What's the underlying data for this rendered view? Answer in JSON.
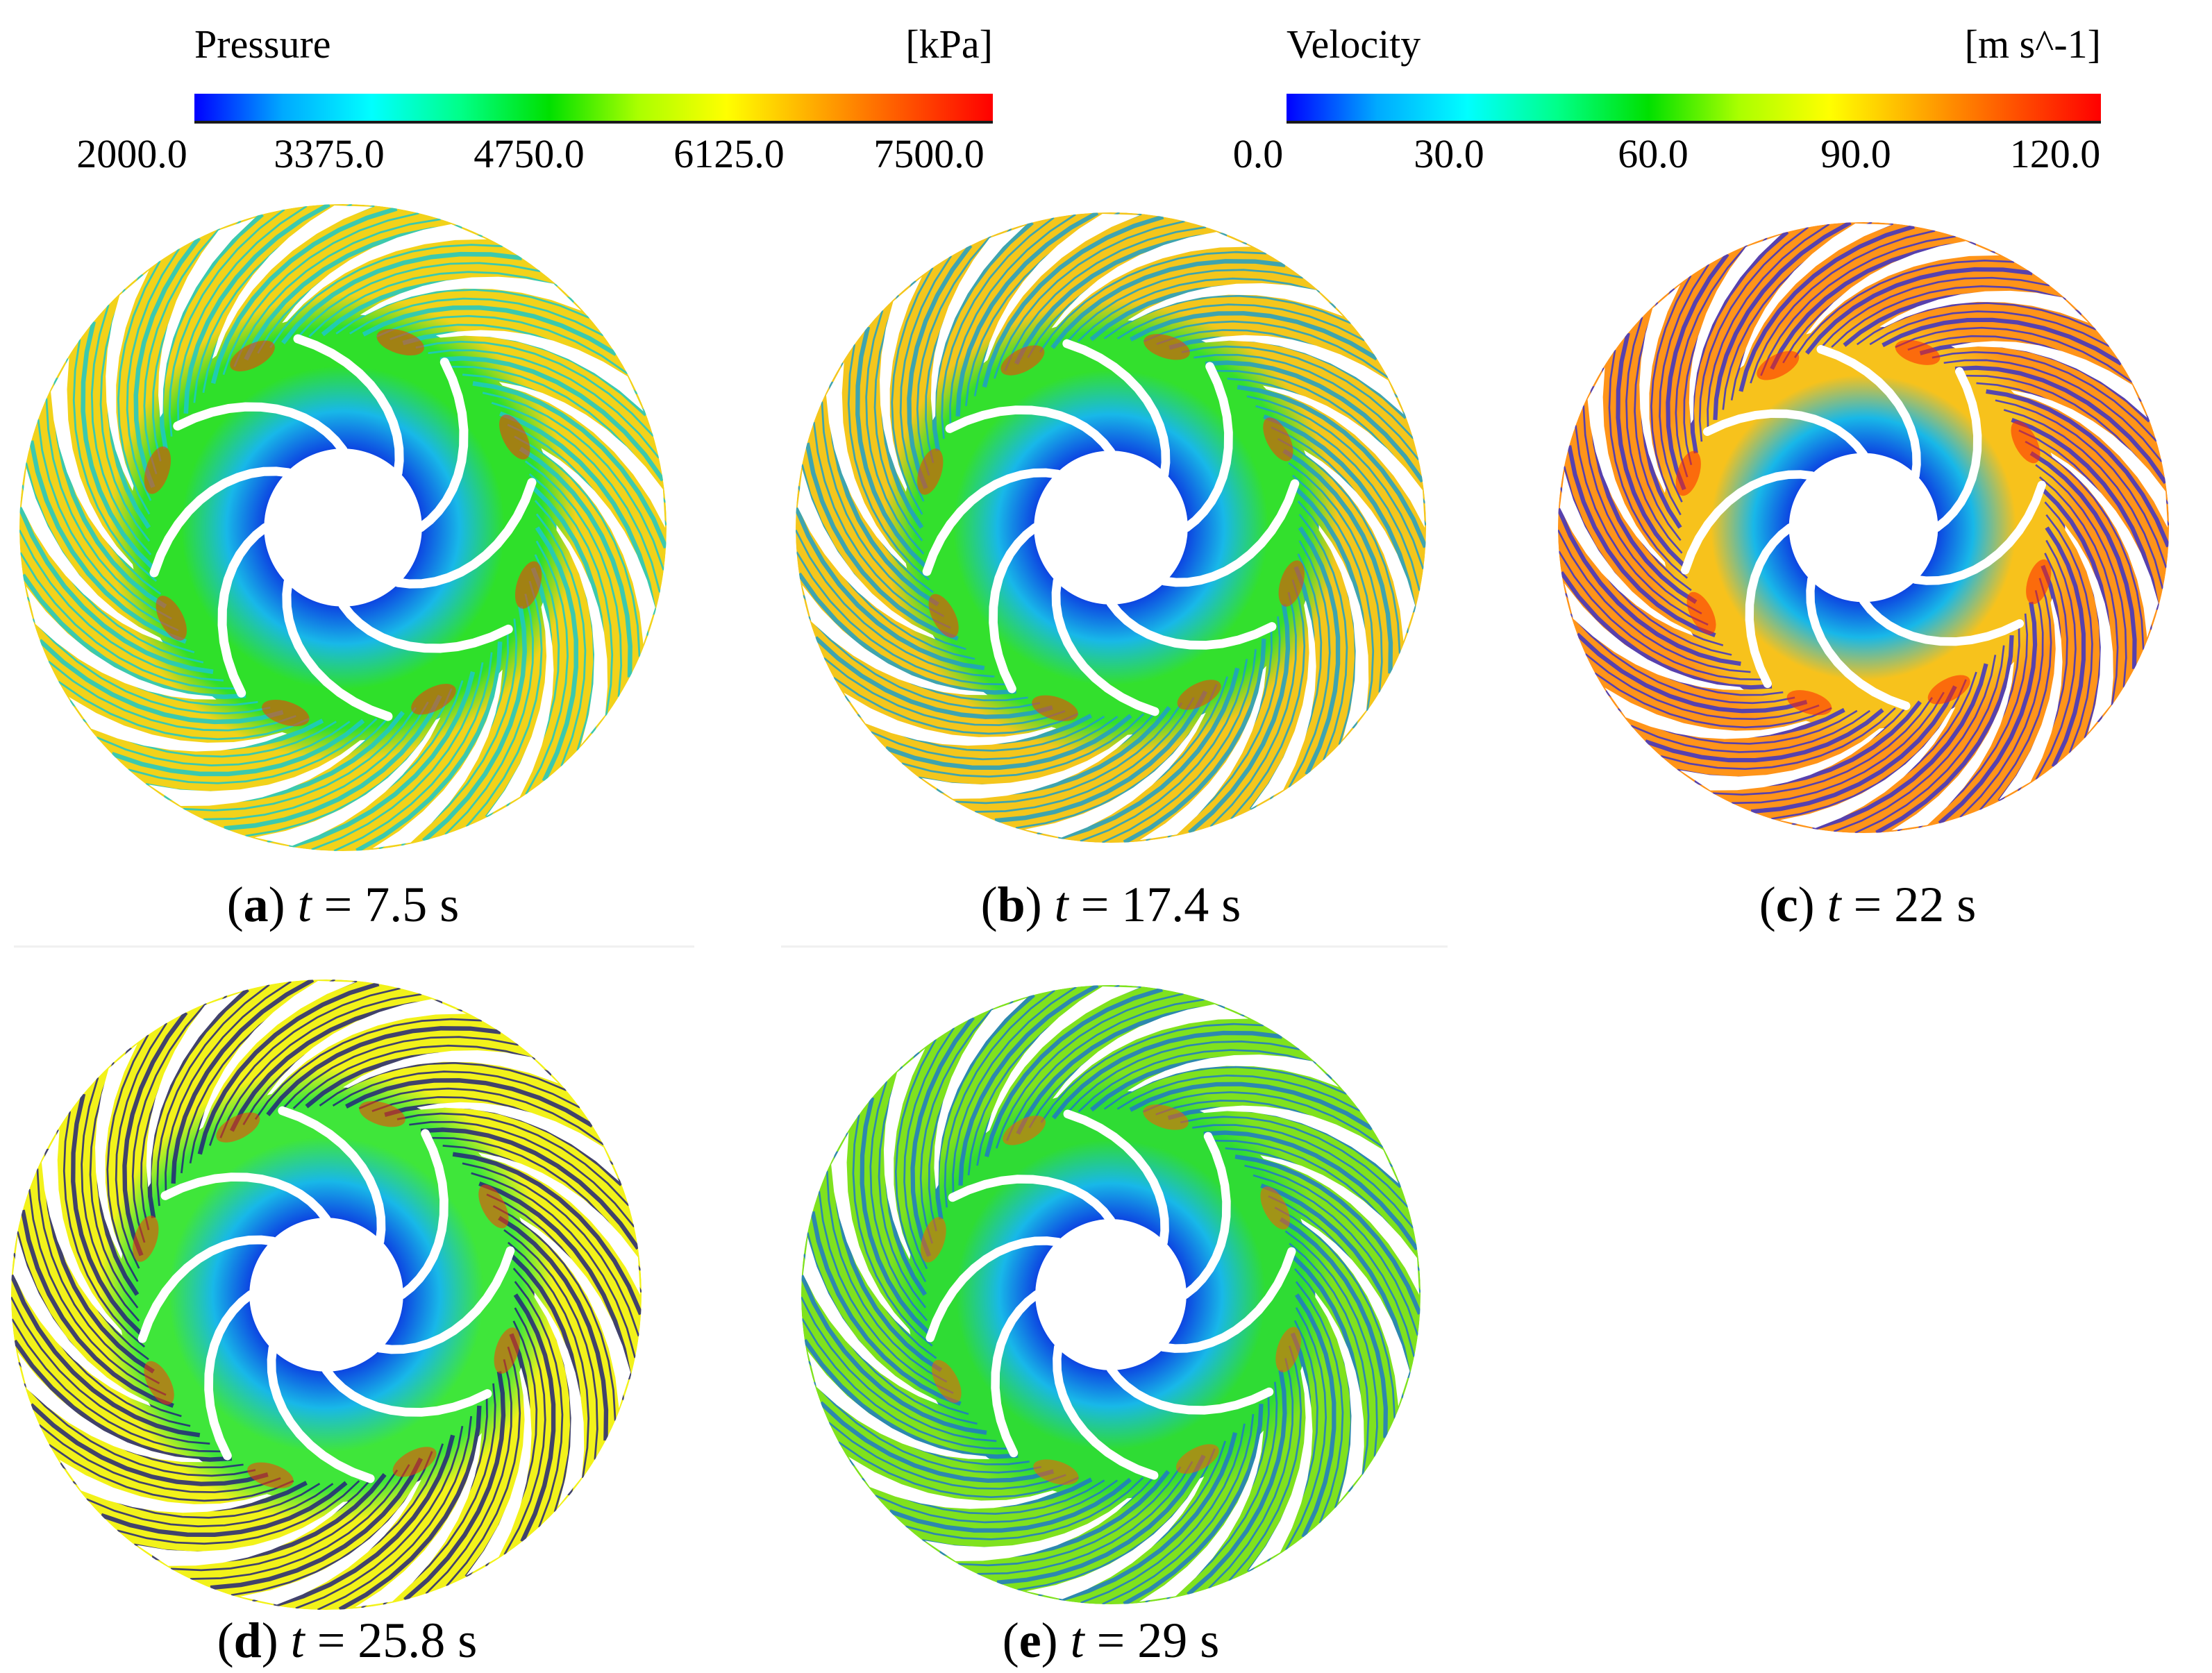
{
  "legends": {
    "pressure": {
      "title": "Pressure",
      "unit": "[kPa]",
      "ticks": [
        "2000.0",
        "3375.0",
        "4750.0",
        "6125.0",
        "7500.0"
      ],
      "min": 2000.0,
      "max": 7500.0
    },
    "velocity": {
      "title": "Velocity",
      "unit": "[m s^-1]",
      "ticks": [
        "0.0",
        "30.0",
        "60.0",
        "90.0",
        "120.0"
      ],
      "min": 0.0,
      "max": 120.0
    },
    "colormap": [
      "#0000ff",
      "#00aaff",
      "#00ffff",
      "#00ff88",
      "#00e000",
      "#aaff00",
      "#ffff00",
      "#ffaa00",
      "#ff5500",
      "#ff0000"
    ]
  },
  "panels": [
    {
      "id": "a",
      "letter": "a",
      "var": "t",
      "eq": "=",
      "value": "7.5",
      "unit": "s",
      "outer_color": "#f2d21a",
      "mid_color": "#2fe02a",
      "inner_color": "#0a2ee0",
      "streak_color": "#1cc8c8",
      "hot_color": "#ff3300"
    },
    {
      "id": "b",
      "letter": "b",
      "var": "t",
      "eq": "=",
      "value": "17.4",
      "unit": "s",
      "outer_color": "#f4c61c",
      "mid_color": "#33e02d",
      "inner_color": "#0a2ee0",
      "streak_color": "#1e9ec8",
      "hot_color": "#ff3a00"
    },
    {
      "id": "c",
      "letter": "c",
      "var": "t",
      "eq": "=",
      "value": "22",
      "unit": "s",
      "outer_color": "#ff9419",
      "mid_color": "#f7c21c",
      "inner_color": "#0a2ee0",
      "streak_color": "#3a32c8",
      "hot_color": "#ff2400"
    },
    {
      "id": "d",
      "letter": "d",
      "var": "t",
      "eq": "=",
      "value": "25.8",
      "unit": "s",
      "outer_color": "#f2f21a",
      "mid_color": "#3fe63a",
      "inner_color": "#0a2ee0",
      "streak_color": "#22237a",
      "hot_color": "#ff3a00"
    },
    {
      "id": "e",
      "letter": "e",
      "var": "t",
      "eq": "=",
      "value": "29",
      "unit": "s",
      "outer_color": "#7fe21e",
      "mid_color": "#2fdc34",
      "inner_color": "#0a2ee0",
      "streak_color": "#1e78c8",
      "hot_color": "#ff5a00"
    }
  ]
}
